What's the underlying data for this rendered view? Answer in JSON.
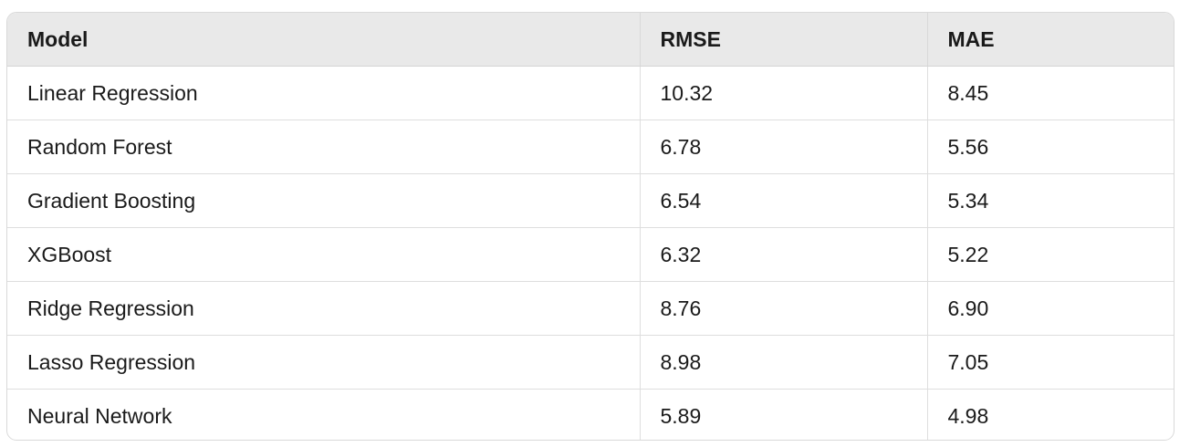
{
  "table": {
    "headers": [
      "Model",
      "RMSE",
      "MAE"
    ],
    "rows": [
      [
        "Linear Regression",
        "10.32",
        "8.45"
      ],
      [
        "Random Forest",
        "6.78",
        "5.56"
      ],
      [
        "Gradient Boosting",
        "6.54",
        "5.34"
      ],
      [
        "XGBoost",
        "6.32",
        "5.22"
      ],
      [
        "Ridge Regression",
        "8.76",
        "6.90"
      ],
      [
        "Lasso Regression",
        "8.98",
        "7.05"
      ],
      [
        "Neural Network",
        "5.89",
        "4.98"
      ]
    ]
  }
}
